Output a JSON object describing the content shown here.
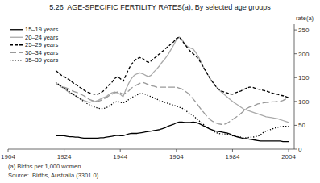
{
  "chart_data": {
    "type": "line",
    "title": "5.26  AGE-SPECIFIC FERTILITY RATES(a), By selected age groups",
    "ylabel": "rate(a)",
    "annotations": [
      "(a) Births per 1,000 women.",
      "Source:  Births, Australia (3301.0)."
    ],
    "xlim": [
      1904,
      2006
    ],
    "xticks": [
      1904,
      1924,
      1944,
      1964,
      1984,
      2004
    ],
    "ylim": [
      0,
      262
    ],
    "yticks": [
      0,
      50,
      100,
      150,
      200,
      250
    ],
    "grid": false,
    "legend": "upper left",
    "x": [
      1921,
      1922,
      1923,
      1924,
      1925,
      1926,
      1927,
      1928,
      1929,
      1930,
      1931,
      1932,
      1933,
      1934,
      1935,
      1936,
      1937,
      1938,
      1939,
      1940,
      1941,
      1942,
      1943,
      1944,
      1945,
      1946,
      1947,
      1948,
      1949,
      1950,
      1951,
      1952,
      1953,
      1954,
      1955,
      1956,
      1957,
      1958,
      1959,
      1960,
      1961,
      1962,
      1963,
      1964,
      1965,
      1966,
      1967,
      1968,
      1969,
      1970,
      1971,
      1972,
      1973,
      1974,
      1975,
      1976,
      1977,
      1978,
      1979,
      1980,
      1981,
      1982,
      1983,
      1984,
      1985,
      1986,
      1987,
      1988,
      1989,
      1990,
      1991,
      1992,
      1993,
      1994,
      1995,
      1996,
      1997,
      1998,
      1999,
      2000,
      2001,
      2002,
      2003,
      2004
    ],
    "series": [
      {
        "name": "15–19 years",
        "color": "#000000",
        "line_style": "solid",
        "values": [
          28,
          28,
          28,
          28,
          27,
          26,
          26,
          25,
          25,
          24,
          23,
          23,
          23,
          23,
          23,
          23,
          24,
          24,
          25,
          26,
          27,
          28,
          29,
          28,
          28,
          30,
          32,
          33,
          33,
          33,
          34,
          35,
          36,
          37,
          38,
          39,
          40,
          41,
          43,
          45,
          48,
          50,
          52,
          55,
          57,
          57,
          56,
          56,
          56,
          57,
          56,
          54,
          51,
          48,
          45,
          42,
          40,
          38,
          37,
          36,
          35,
          34,
          32,
          29,
          27,
          25,
          24,
          22,
          22,
          21,
          20,
          19,
          18,
          17,
          17,
          17,
          17,
          17,
          17,
          17,
          17,
          16,
          16,
          16
        ]
      },
      {
        "name": "20–24 years",
        "color": "#aaaaaa",
        "line_style": "solid",
        "values": [
          138,
          135,
          130,
          128,
          122,
          118,
          115,
          112,
          108,
          105,
          102,
          100,
          98,
          100,
          100,
          102,
          105,
          108,
          110,
          115,
          118,
          120,
          118,
          115,
          110,
          125,
          138,
          148,
          155,
          158,
          160,
          158,
          155,
          152,
          155,
          162,
          168,
          175,
          183,
          190,
          198,
          208,
          218,
          230,
          235,
          230,
          220,
          215,
          212,
          210,
          202,
          192,
          180,
          168,
          158,
          148,
          140,
          132,
          125,
          120,
          115,
          110,
          105,
          100,
          96,
          92,
          88,
          84,
          82,
          80,
          78,
          76,
          74,
          72,
          70,
          68,
          67,
          66,
          65,
          64,
          62,
          60,
          58,
          56
        ]
      },
      {
        "name": "25–29 years",
        "color": "#000000",
        "line_style": "dashed",
        "values": [
          165,
          160,
          155,
          152,
          148,
          145,
          140,
          136,
          132,
          128,
          124,
          120,
          118,
          116,
          115,
          115,
          118,
          122,
          128,
          135,
          140,
          148,
          152,
          148,
          142,
          155,
          168,
          178,
          185,
          190,
          192,
          190,
          185,
          182,
          185,
          190,
          195,
          200,
          205,
          210,
          215,
          220,
          225,
          232,
          235,
          228,
          220,
          212,
          205,
          200,
          195,
          188,
          178,
          168,
          158,
          148,
          140,
          132,
          126,
          122,
          120,
          118,
          116,
          115,
          118,
          120,
          122,
          125,
          128,
          130,
          130,
          128,
          126,
          125,
          123,
          122,
          120,
          118,
          116,
          115,
          113,
          112,
          110,
          108
        ]
      },
      {
        "name": "30–34 years",
        "color": "#999999",
        "line_style": "longdash",
        "values": [
          138,
          135,
          132,
          130,
          128,
          125,
          122,
          120,
          118,
          115,
          112,
          108,
          104,
          102,
          100,
          100,
          102,
          105,
          108,
          112,
          115,
          118,
          120,
          118,
          115,
          118,
          122,
          128,
          132,
          135,
          138,
          140,
          138,
          135,
          133,
          132,
          130,
          130,
          130,
          130,
          130,
          130,
          130,
          130,
          128,
          126,
          122,
          118,
          112,
          105,
          98,
          90,
          82,
          75,
          68,
          62,
          58,
          55,
          53,
          52,
          52,
          54,
          58,
          62,
          66,
          70,
          75,
          80,
          85,
          88,
          90,
          92,
          95,
          96,
          97,
          98,
          98,
          99,
          99,
          100,
          100,
          102,
          105,
          108
        ]
      },
      {
        "name": "35–39 years",
        "color": "#000000",
        "line_style": "dotted",
        "values": [
          140,
          136,
          132,
          128,
          124,
          120,
          116,
          112,
          108,
          104,
          100,
          96,
          93,
          90,
          88,
          86,
          85,
          85,
          87,
          90,
          94,
          98,
          100,
          98,
          97,
          100,
          104,
          108,
          111,
          114,
          116,
          117,
          115,
          112,
          110,
          108,
          105,
          102,
          100,
          98,
          96,
          94,
          92,
          90,
          88,
          86,
          82,
          78,
          74,
          70,
          65,
          60,
          55,
          50,
          46,
          42,
          38,
          35,
          33,
          32,
          32,
          32,
          30,
          28,
          27,
          26,
          25,
          24,
          24,
          25,
          25,
          26,
          27,
          30,
          35,
          38,
          40,
          42,
          44,
          46,
          47,
          48,
          48,
          48
        ]
      }
    ]
  }
}
